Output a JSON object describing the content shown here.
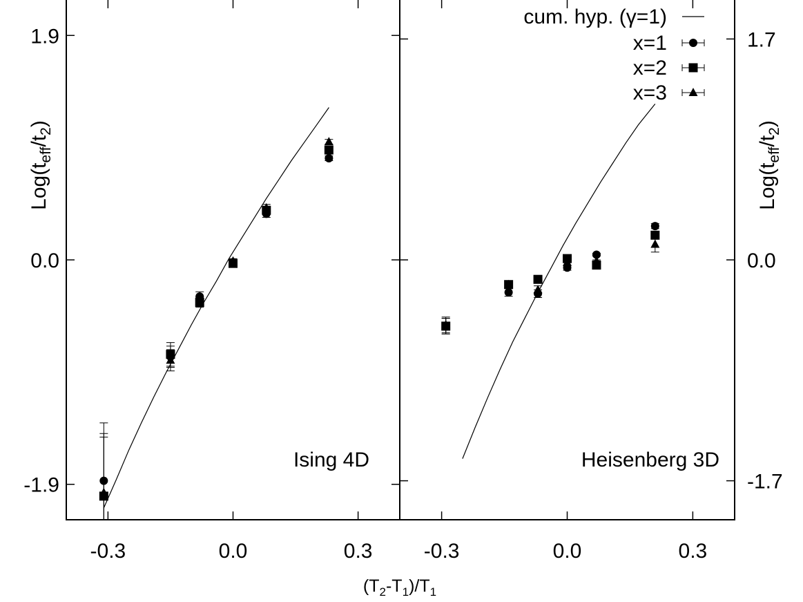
{
  "chart_data": [
    {
      "type": "scatter",
      "panel": "Ising 4D",
      "label": "Ising 4D",
      "xlim": [
        -0.4,
        0.4
      ],
      "ylim": [
        -2.2,
        2.2
      ],
      "xticks": [
        -0.3,
        0.0,
        0.3
      ],
      "xtick_labels": [
        "-0.3",
        "0.0",
        "0.3"
      ],
      "yticks": [
        -1.9,
        0.0,
        1.9
      ],
      "ytick_labels": [
        "-1.9",
        "0.0",
        "1.9"
      ],
      "ylabel": "Log(t_eff/t_2)",
      "ylabel_parts": {
        "pre": "Log(t",
        "sub1": "eff",
        "mid": "/t",
        "sub2": "2",
        "post": ")"
      },
      "series": [
        {
          "name": "cum. hyp. (γ=1)",
          "kind": "line",
          "x": [
            -0.31,
            -0.28,
            -0.25,
            -0.22,
            -0.19,
            -0.16,
            -0.13,
            -0.1,
            -0.07,
            -0.04,
            -0.01,
            0.02,
            0.05,
            0.08,
            0.11,
            0.14,
            0.17,
            0.2,
            0.23
          ],
          "y": [
            -2.1,
            -1.86,
            -1.61,
            -1.38,
            -1.16,
            -0.95,
            -0.75,
            -0.55,
            -0.36,
            -0.18,
            0.01,
            0.18,
            0.35,
            0.52,
            0.68,
            0.84,
            0.99,
            1.14,
            1.29
          ]
        },
        {
          "name": "x=1",
          "marker": "circle",
          "points": [
            {
              "x": -0.31,
              "y": -1.87,
              "err": 0.49
            },
            {
              "x": -0.15,
              "y": -0.82,
              "err": 0.09
            },
            {
              "x": -0.08,
              "y": -0.31,
              "err": 0.04
            },
            {
              "x": 0.0,
              "y": -0.02,
              "err": 0.02
            },
            {
              "x": 0.08,
              "y": 0.39,
              "err": 0.03
            },
            {
              "x": 0.23,
              "y": 0.86,
              "err": 0.02
            }
          ]
        },
        {
          "name": "x=2",
          "marker": "square",
          "points": [
            {
              "x": -0.31,
              "y": -2.0,
              "err": 0.5
            },
            {
              "x": -0.15,
              "y": -0.8,
              "err": 0.1
            },
            {
              "x": -0.08,
              "y": -0.36,
              "err": 0.04
            },
            {
              "x": 0.0,
              "y": -0.03,
              "err": 0.02
            },
            {
              "x": 0.08,
              "y": 0.42,
              "err": 0.03
            },
            {
              "x": 0.23,
              "y": 0.93,
              "err": 0.02
            }
          ]
        },
        {
          "name": "x=3",
          "marker": "triangle",
          "points": [
            {
              "x": -0.31,
              "y": -1.97,
              "err": 0.5
            },
            {
              "x": -0.15,
              "y": -0.85,
              "err": 0.09
            },
            {
              "x": -0.08,
              "y": -0.35,
              "err": 0.04
            },
            {
              "x": 0.0,
              "y": -0.01,
              "err": 0.02
            },
            {
              "x": 0.08,
              "y": 0.44,
              "err": 0.03
            },
            {
              "x": 0.23,
              "y": 1.0,
              "err": 0.02
            }
          ]
        }
      ]
    },
    {
      "type": "scatter",
      "panel": "Heisenberg 3D",
      "label": "Heisenberg 3D",
      "xlim": [
        -0.4,
        0.4
      ],
      "ylim": [
        -2.0,
        2.0
      ],
      "xticks": [
        -0.3,
        0.0,
        0.3
      ],
      "xtick_labels": [
        "-0.3",
        "0.0",
        "0.3"
      ],
      "yticks": [
        -1.7,
        0.0,
        1.7
      ],
      "ytick_labels": [
        "-1.7",
        "0.0",
        "1.7"
      ],
      "ylabel": "Log(t_eff/t_2)",
      "ylabel_parts": {
        "pre": "Log(t",
        "sub1": "eff",
        "mid": "/t",
        "sub2": "2",
        "post": ")"
      },
      "series": [
        {
          "name": "cum. hyp. (γ=1)",
          "kind": "line",
          "x": [
            -0.25,
            -0.22,
            -0.19,
            -0.16,
            -0.13,
            -0.1,
            -0.07,
            -0.04,
            -0.01,
            0.02,
            0.05,
            0.08,
            0.11,
            0.14,
            0.17,
            0.21
          ],
          "y": [
            -1.53,
            -1.29,
            -1.06,
            -0.84,
            -0.63,
            -0.44,
            -0.25,
            -0.07,
            0.11,
            0.28,
            0.44,
            0.6,
            0.75,
            0.9,
            1.04,
            1.2
          ]
        },
        {
          "name": "x=1",
          "marker": "circle",
          "points": [
            {
              "x": -0.29,
              "y": -0.51,
              "err": 0.06
            },
            {
              "x": -0.14,
              "y": -0.25,
              "err": 0.03
            },
            {
              "x": -0.07,
              "y": -0.26,
              "err": 0.03
            },
            {
              "x": 0.0,
              "y": -0.06,
              "err": 0.02
            },
            {
              "x": 0.07,
              "y": 0.04,
              "err": 0.01
            },
            {
              "x": 0.21,
              "y": 0.26,
              "err": 0.02
            }
          ]
        },
        {
          "name": "x=2",
          "marker": "square",
          "points": [
            {
              "x": -0.29,
              "y": -0.51,
              "err": 0.06
            },
            {
              "x": -0.14,
              "y": -0.19,
              "err": 0.03
            },
            {
              "x": -0.07,
              "y": -0.15,
              "err": 0.03
            },
            {
              "x": 0.0,
              "y": 0.01,
              "err": 0.02
            },
            {
              "x": 0.07,
              "y": -0.04,
              "err": 0.01
            },
            {
              "x": 0.21,
              "y": 0.19,
              "err": 0.02
            }
          ]
        },
        {
          "name": "x=3",
          "marker": "triangle",
          "points": [
            {
              "x": -0.29,
              "y": -0.5,
              "err": 0.06
            },
            {
              "x": -0.14,
              "y": -0.19,
              "err": 0.03
            },
            {
              "x": -0.07,
              "y": -0.23,
              "err": 0.03
            },
            {
              "x": 0.0,
              "y": -0.02,
              "err": 0.02
            },
            {
              "x": 0.07,
              "y": -0.01,
              "err": 0.01
            },
            {
              "x": 0.21,
              "y": 0.12,
              "err": 0.06
            }
          ]
        }
      ]
    }
  ],
  "xlabel": "(T_2-T_1)/T_1",
  "xlabel_parts": {
    "pre": "(T",
    "sub1": "2",
    "mid": "-T",
    "sub2": "1",
    "mid2": ")/T",
    "sub3": "1"
  },
  "legend": {
    "position": "top-right",
    "entries": [
      {
        "label": "cum. hyp. (γ=1)",
        "kind": "line"
      },
      {
        "label": "x=1",
        "marker": "circle"
      },
      {
        "label": "x=2",
        "marker": "square"
      },
      {
        "label": "x=3",
        "marker": "triangle"
      }
    ]
  }
}
